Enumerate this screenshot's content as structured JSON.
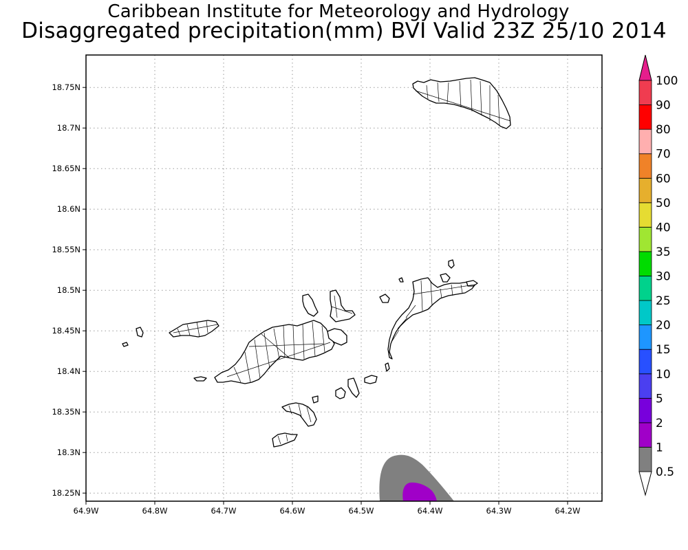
{
  "titles": {
    "line1": "Caribbean Institute for Meteorology and Hydrology",
    "line2": "Disaggregated precipitation(mm) BVI Valid 23Z 25/10 2014"
  },
  "map": {
    "lon_range": [
      -64.9,
      -64.15
    ],
    "lat_range": [
      18.24,
      18.79
    ],
    "x_ticks": [
      {
        "value": -64.9,
        "label": "64.9W"
      },
      {
        "value": -64.8,
        "label": "64.8W"
      },
      {
        "value": -64.7,
        "label": "64.7W"
      },
      {
        "value": -64.6,
        "label": "64.6W"
      },
      {
        "value": -64.5,
        "label": "64.5W"
      },
      {
        "value": -64.4,
        "label": "64.4W"
      },
      {
        "value": -64.3,
        "label": "64.3W"
      },
      {
        "value": -64.2,
        "label": "64.2W"
      }
    ],
    "y_ticks": [
      {
        "value": 18.25,
        "label": "18.25N"
      },
      {
        "value": 18.3,
        "label": "18.3N"
      },
      {
        "value": 18.35,
        "label": "18.35N"
      },
      {
        "value": 18.4,
        "label": "18.4N"
      },
      {
        "value": 18.45,
        "label": "18.45N"
      },
      {
        "value": 18.5,
        "label": "18.5N"
      },
      {
        "value": 18.55,
        "label": "18.55N"
      },
      {
        "value": 18.6,
        "label": "18.6N"
      },
      {
        "value": 18.65,
        "label": "18.65N"
      },
      {
        "value": 18.7,
        "label": "18.7N"
      },
      {
        "value": 18.75,
        "label": "18.75N"
      }
    ],
    "grid": "dotted"
  },
  "colorbar": {
    "levels": [
      {
        "label": "0.5",
        "color": "#ffffff"
      },
      {
        "label": "1",
        "color": "#808080"
      },
      {
        "label": "2",
        "color": "#a000c8"
      },
      {
        "label": "5",
        "color": "#7800dc"
      },
      {
        "label": "10",
        "color": "#4b3ff0"
      },
      {
        "label": "15",
        "color": "#2850ff"
      },
      {
        "label": "20",
        "color": "#1e96ff"
      },
      {
        "label": "25",
        "color": "#00c8c8"
      },
      {
        "label": "30",
        "color": "#00d28c"
      },
      {
        "label": "35",
        "color": "#00dc00"
      },
      {
        "label": "40",
        "color": "#a0e632"
      },
      {
        "label": "50",
        "color": "#e6dc32"
      },
      {
        "label": "60",
        "color": "#e6af2d"
      },
      {
        "label": "70",
        "color": "#f08228"
      },
      {
        "label": "80",
        "color": "#ffafaf"
      },
      {
        "label": "90",
        "color": "#ff0000"
      },
      {
        "label": "100",
        "color": "#f03c50"
      }
    ],
    "top_arrow_color": "#e61e8c",
    "bottom_arrow_color": "#ffffff"
  },
  "precip_areas": [
    {
      "min_mm": 1,
      "color": "#808080"
    },
    {
      "min_mm": 2,
      "color": "#a000c8"
    }
  ]
}
